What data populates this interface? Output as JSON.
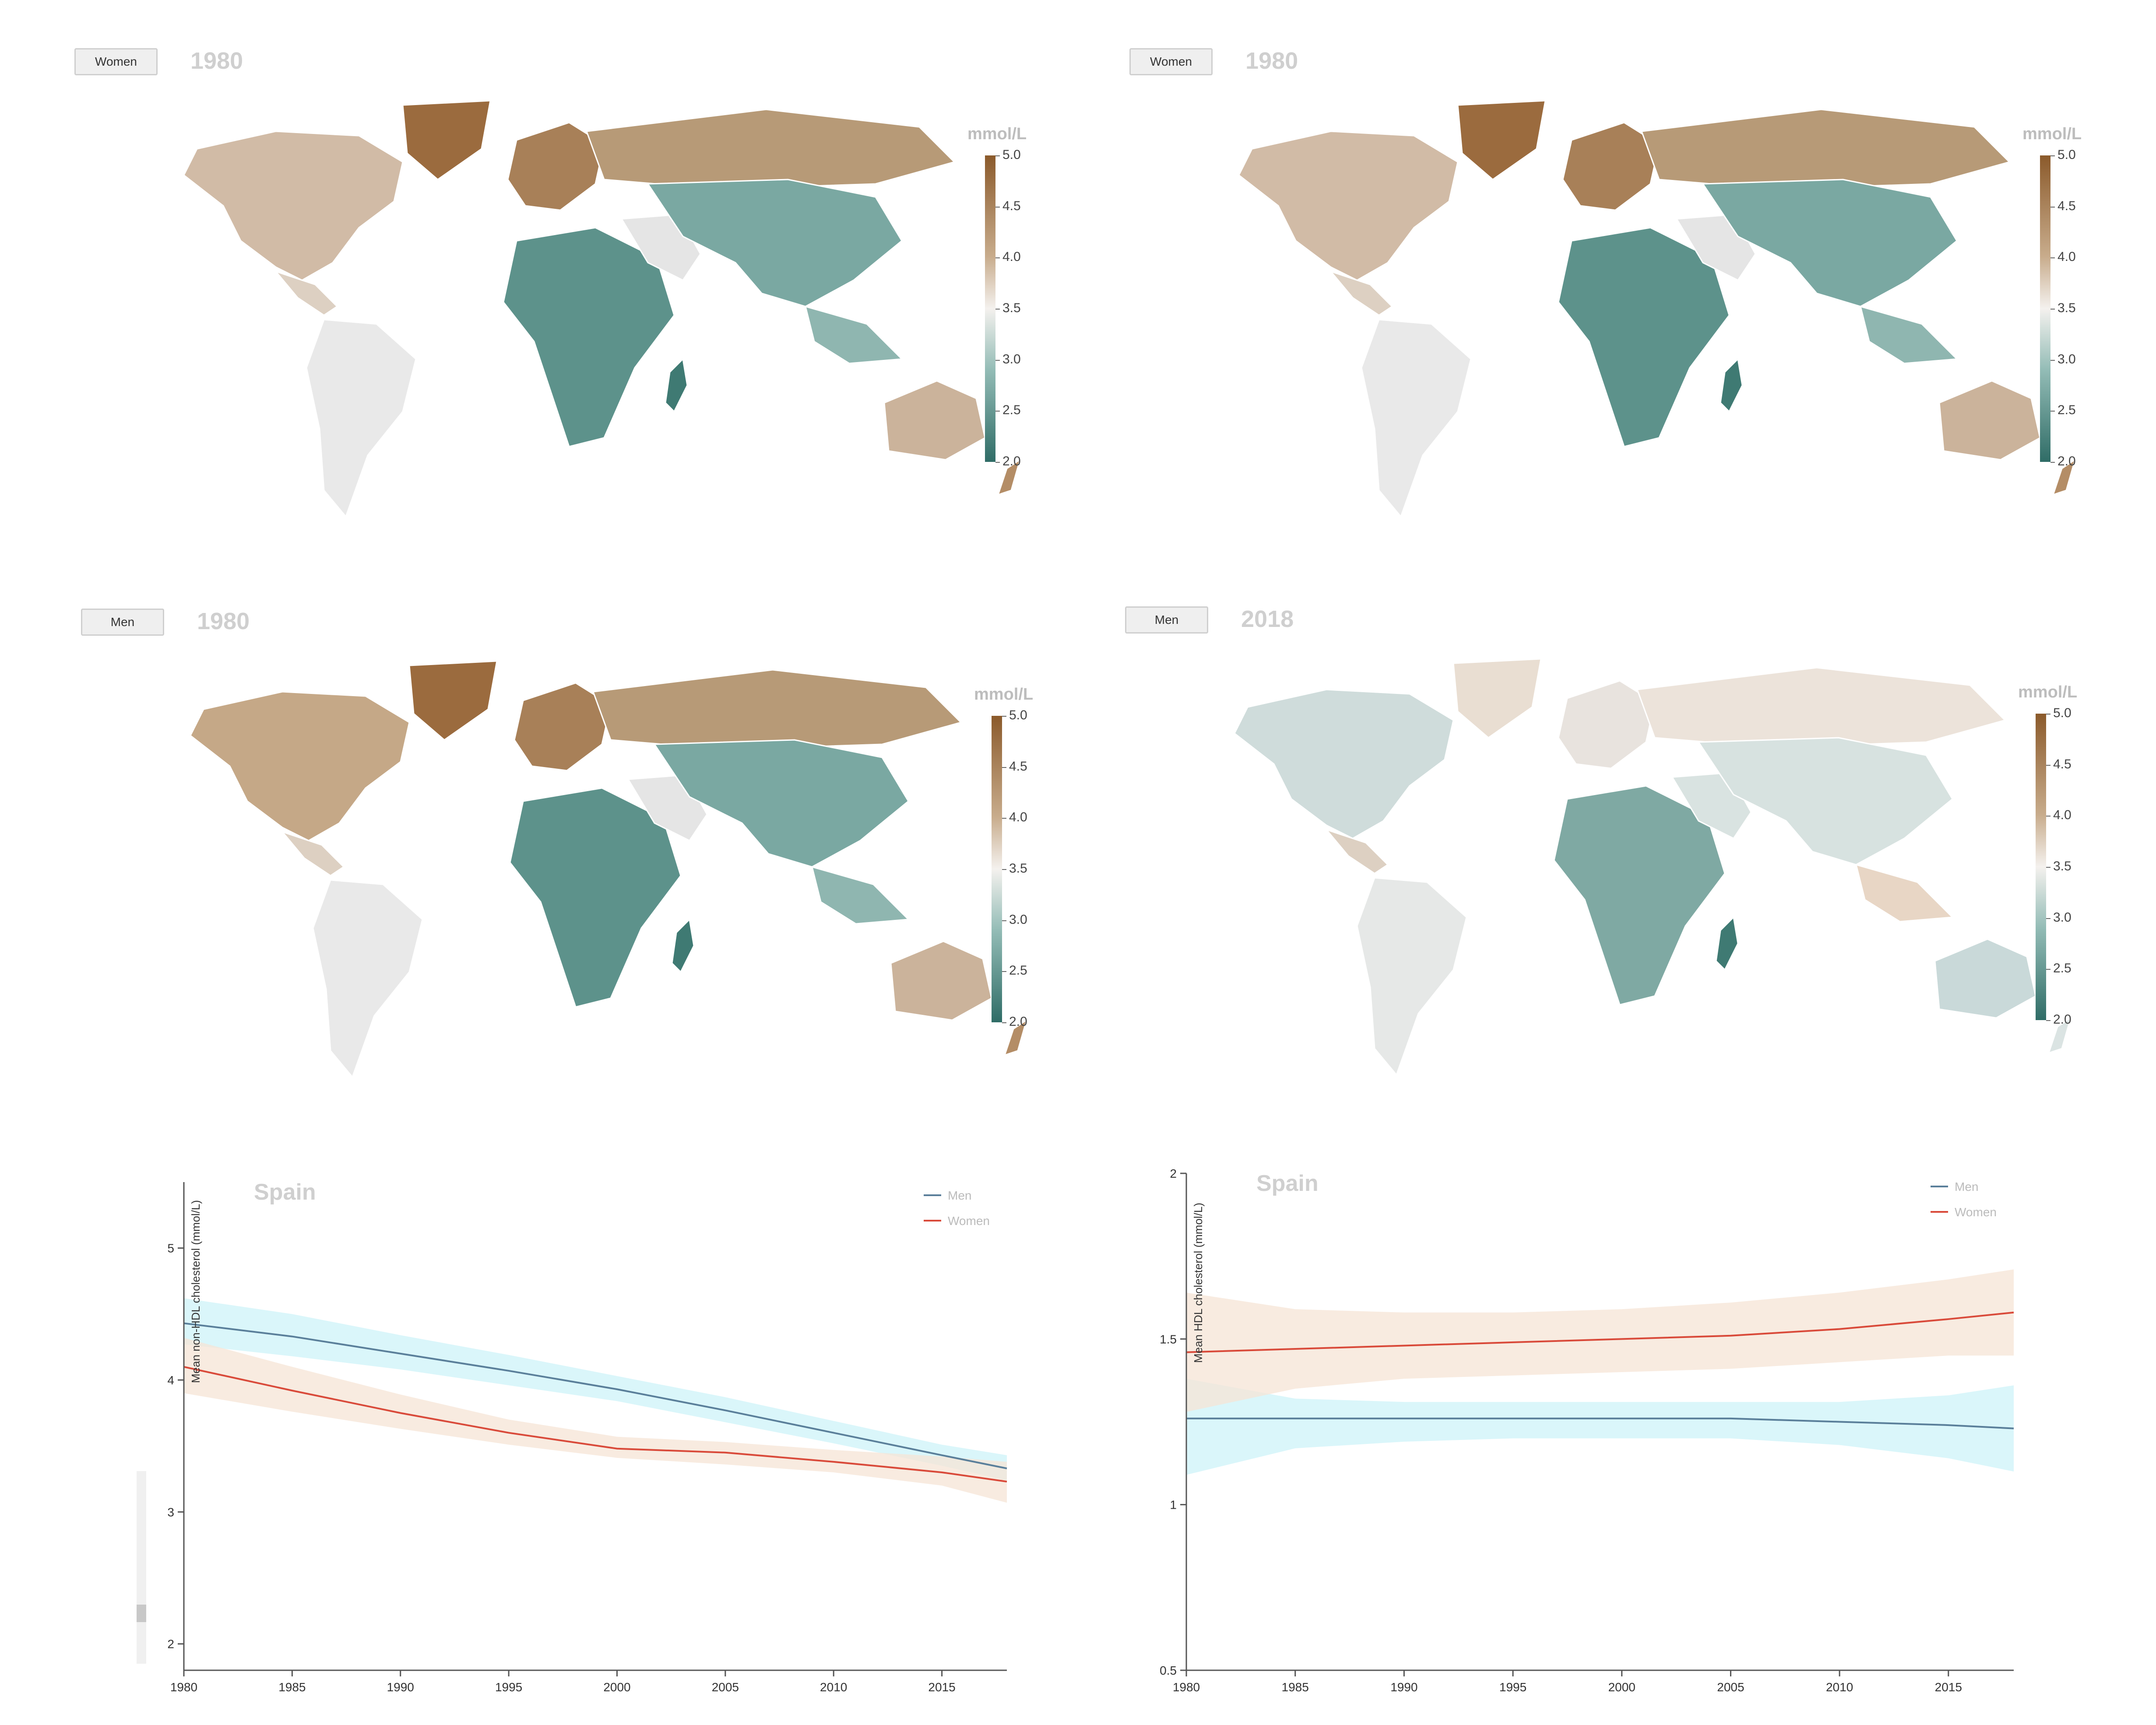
{
  "maps": [
    {
      "id": "map1",
      "sex": "Women",
      "year": "1980",
      "unit": "mmol/L",
      "ticks": [
        "5.0",
        "4.5",
        "4.0",
        "3.5",
        "3.0",
        "2.5",
        "2.0"
      ]
    },
    {
      "id": "map2",
      "sex": "Women",
      "year": "1980",
      "unit": "mmol/L",
      "ticks": [
        "5.0",
        "4.5",
        "4.0",
        "3.5",
        "3.0",
        "2.5",
        "2.0"
      ]
    },
    {
      "id": "map3",
      "sex": "Men",
      "year": "1980",
      "unit": "mmol/L",
      "ticks": [
        "5.0",
        "4.5",
        "4.0",
        "3.5",
        "3.0",
        "2.5",
        "2.0"
      ]
    },
    {
      "id": "map4",
      "sex": "Men",
      "year": "2018",
      "unit": "mmol/L",
      "ticks": [
        "5.0",
        "4.5",
        "4.0",
        "3.5",
        "3.0",
        "2.5",
        "2.0"
      ]
    }
  ],
  "colors": {
    "men_line": "#5a7f9a",
    "men_band": "#cdf3f8",
    "women_line": "#d94a3a",
    "women_band": "#f6e4d6",
    "scale_high": "#8b5a2b",
    "scale_mid": "#f4f1ee",
    "scale_low": "#2f6c66"
  },
  "chart_data": [
    {
      "type": "line",
      "title": "Spain",
      "ylabel": "Mean non-HDL cholesterol (mmol/L)",
      "xlabel": "",
      "xlim": [
        1980,
        2018
      ],
      "ylim": [
        1.8,
        5.5
      ],
      "x_ticks": [
        "1980",
        "1985",
        "1990",
        "1995",
        "2000",
        "2005",
        "2010",
        "2015"
      ],
      "y_ticks": [
        "2",
        "3",
        "4",
        "5"
      ],
      "legend_position": "top-right",
      "grid": false,
      "x": [
        1980,
        1985,
        1990,
        1995,
        2000,
        2005,
        2010,
        2015,
        2018
      ],
      "series": [
        {
          "name": "Men",
          "values": [
            4.43,
            4.33,
            4.2,
            4.07,
            3.93,
            3.77,
            3.6,
            3.43,
            3.33
          ],
          "lower": [
            4.27,
            4.18,
            4.08,
            3.96,
            3.84,
            3.68,
            3.52,
            3.35,
            3.24
          ],
          "upper": [
            4.62,
            4.5,
            4.34,
            4.19,
            4.03,
            3.87,
            3.69,
            3.51,
            3.43
          ]
        },
        {
          "name": "Women",
          "values": [
            4.1,
            3.92,
            3.75,
            3.6,
            3.48,
            3.45,
            3.38,
            3.3,
            3.23
          ],
          "lower": [
            3.9,
            3.76,
            3.63,
            3.51,
            3.41,
            3.36,
            3.3,
            3.2,
            3.07
          ],
          "upper": [
            4.32,
            4.1,
            3.89,
            3.7,
            3.57,
            3.53,
            3.47,
            3.42,
            3.38
          ]
        }
      ]
    },
    {
      "type": "line",
      "title": "Spain",
      "ylabel": "Mean HDL cholesterol (mmol/L)",
      "xlabel": "",
      "xlim": [
        1980,
        2018
      ],
      "ylim": [
        0.5,
        2
      ],
      "x_ticks": [
        "1980",
        "1985",
        "1990",
        "1995",
        "2000",
        "2005",
        "2010",
        "2015"
      ],
      "y_ticks": [
        "0.5",
        "1",
        "1.5",
        "2"
      ],
      "legend_position": "top-right",
      "grid": false,
      "x": [
        1980,
        1985,
        1990,
        1995,
        2000,
        2005,
        2010,
        2015,
        2018
      ],
      "series": [
        {
          "name": "Men",
          "values": [
            1.26,
            1.26,
            1.26,
            1.26,
            1.26,
            1.26,
            1.25,
            1.24,
            1.23
          ],
          "lower": [
            1.09,
            1.17,
            1.19,
            1.2,
            1.2,
            1.2,
            1.18,
            1.14,
            1.1
          ],
          "upper": [
            1.38,
            1.32,
            1.31,
            1.31,
            1.31,
            1.31,
            1.31,
            1.33,
            1.36
          ]
        },
        {
          "name": "Women",
          "values": [
            1.46,
            1.47,
            1.48,
            1.49,
            1.5,
            1.51,
            1.53,
            1.56,
            1.58
          ],
          "lower": [
            1.28,
            1.35,
            1.38,
            1.39,
            1.4,
            1.41,
            1.43,
            1.45,
            1.45
          ],
          "upper": [
            1.64,
            1.59,
            1.58,
            1.58,
            1.59,
            1.61,
            1.64,
            1.68,
            1.71
          ]
        }
      ]
    }
  ]
}
